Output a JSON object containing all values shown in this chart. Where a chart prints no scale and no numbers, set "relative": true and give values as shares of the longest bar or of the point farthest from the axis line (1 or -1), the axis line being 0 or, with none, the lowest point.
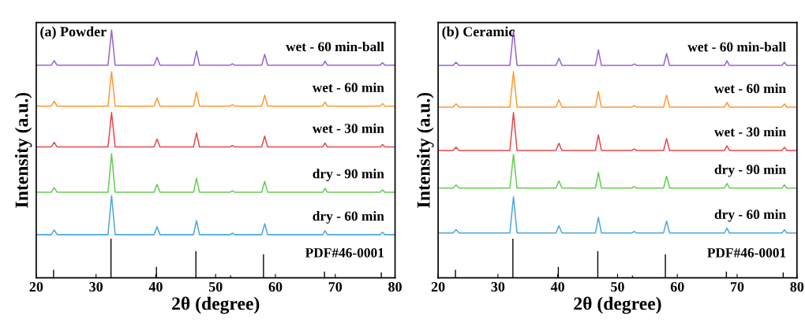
{
  "chart_data": [
    {
      "type": "line",
      "title": "(a) Powder",
      "xlabel": "2θ (degree)",
      "ylabel": "Intensity (a.u.)",
      "relative": true,
      "tick_labels": "x",
      "xlim": [
        20,
        80
      ],
      "xticks": [
        20,
        30,
        40,
        50,
        60,
        70,
        80
      ],
      "legend": false,
      "x": [
        20,
        22.5,
        23.0,
        23.5,
        32.0,
        32.6,
        33.2,
        39.7,
        40.2,
        40.7,
        46.3,
        46.8,
        47.3,
        52.4,
        52.8,
        53.2,
        57.7,
        58.2,
        58.7,
        67.9,
        68.3,
        68.7,
        77.5,
        77.9,
        78.3,
        80
      ],
      "series": [
        {
          "name": "wet - 60 min-ball",
          "color": "#9966cc",
          "values": [
            0.858,
            0.858,
            0.877,
            0.858,
            0.858,
            1.0,
            0.858,
            0.858,
            0.89,
            0.858,
            0.858,
            0.915,
            0.858,
            0.858,
            0.864,
            0.858,
            0.858,
            0.902,
            0.858,
            0.858,
            0.874,
            0.858,
            0.858,
            0.868,
            0.858,
            0.858
          ]
        },
        {
          "name": "wet - 60 min",
          "color": "#ff9933",
          "values": [
            0.693,
            0.693,
            0.712,
            0.693,
            0.693,
            0.832,
            0.693,
            0.693,
            0.725,
            0.693,
            0.693,
            0.75,
            0.693,
            0.693,
            0.699,
            0.693,
            0.693,
            0.737,
            0.693,
            0.693,
            0.709,
            0.693,
            0.693,
            0.703,
            0.693,
            0.693
          ]
        },
        {
          "name": "wet - 30 min",
          "color": "#e8474b",
          "values": [
            0.528,
            0.528,
            0.547,
            0.528,
            0.528,
            0.667,
            0.528,
            0.528,
            0.56,
            0.528,
            0.528,
            0.585,
            0.528,
            0.528,
            0.534,
            0.528,
            0.528,
            0.572,
            0.528,
            0.528,
            0.544,
            0.528,
            0.528,
            0.538,
            0.528,
            0.528
          ]
        },
        {
          "name": "dry - 90 min",
          "color": "#66cc55",
          "values": [
            0.345,
            0.345,
            0.364,
            0.345,
            0.345,
            0.5,
            0.345,
            0.345,
            0.377,
            0.345,
            0.345,
            0.402,
            0.345,
            0.345,
            0.351,
            0.345,
            0.345,
            0.389,
            0.345,
            0.345,
            0.361,
            0.345,
            0.345,
            0.355,
            0.345,
            0.345
          ]
        },
        {
          "name": "dry - 60 min",
          "color": "#4da6e0",
          "values": [
            0.174,
            0.174,
            0.193,
            0.174,
            0.174,
            0.332,
            0.174,
            0.174,
            0.206,
            0.174,
            0.174,
            0.231,
            0.174,
            0.174,
            0.18,
            0.174,
            0.174,
            0.218,
            0.174,
            0.174,
            0.19,
            0.174,
            0.174,
            0.184,
            0.174,
            0.174
          ]
        },
        {
          "name": "PDF#46-0001",
          "type": "bar",
          "color": "#000000",
          "x": [
            22.9,
            32.5,
            40.1,
            46.7,
            52.5,
            58.0,
            68.2,
            77.7
          ],
          "values": [
            0.032,
            0.158,
            0.044,
            0.108,
            0.009,
            0.095,
            0.025,
            0.022
          ]
        }
      ]
    },
    {
      "type": "line",
      "title": "(b) Ceramic",
      "xlabel": "2θ (degree)",
      "ylabel": "Intensity (a.u.)",
      "relative": true,
      "tick_labels": "x",
      "xlim": [
        20,
        80
      ],
      "xticks": [
        20,
        30,
        40,
        50,
        60,
        70,
        80
      ],
      "legend": false,
      "x": [
        20,
        22.5,
        23.0,
        23.5,
        32.0,
        32.6,
        33.2,
        39.7,
        40.2,
        40.7,
        46.3,
        46.8,
        47.3,
        52.4,
        52.8,
        53.2,
        57.7,
        58.2,
        58.7,
        67.9,
        68.3,
        68.7,
        77.5,
        77.9,
        78.3,
        80
      ],
      "series": [
        {
          "name": "wet - 60 min-ball",
          "color": "#9966cc",
          "values": [
            0.857,
            0.857,
            0.87,
            0.857,
            0.857,
            1.0,
            0.857,
            0.857,
            0.886,
            0.857,
            0.857,
            0.92,
            0.857,
            0.857,
            0.863,
            0.857,
            0.857,
            0.905,
            0.857,
            0.857,
            0.876,
            0.857,
            0.857,
            0.87,
            0.857,
            0.857
          ]
        },
        {
          "name": "wet - 60 min",
          "color": "#ff9933",
          "values": [
            0.689,
            0.689,
            0.702,
            0.689,
            0.689,
            0.832,
            0.689,
            0.689,
            0.718,
            0.689,
            0.689,
            0.752,
            0.689,
            0.689,
            0.695,
            0.689,
            0.689,
            0.737,
            0.689,
            0.689,
            0.708,
            0.689,
            0.689,
            0.702,
            0.689,
            0.689
          ]
        },
        {
          "name": "wet - 30 min",
          "color": "#e8474b",
          "values": [
            0.514,
            0.514,
            0.527,
            0.514,
            0.514,
            0.667,
            0.514,
            0.514,
            0.543,
            0.514,
            0.514,
            0.577,
            0.514,
            0.514,
            0.52,
            0.514,
            0.514,
            0.562,
            0.514,
            0.514,
            0.533,
            0.514,
            0.514,
            0.527,
            0.514,
            0.514
          ]
        },
        {
          "name": "dry - 90 min",
          "color": "#66cc55",
          "values": [
            0.362,
            0.362,
            0.375,
            0.362,
            0.362,
            0.498,
            0.362,
            0.362,
            0.391,
            0.362,
            0.362,
            0.425,
            0.362,
            0.362,
            0.368,
            0.362,
            0.362,
            0.41,
            0.362,
            0.362,
            0.381,
            0.362,
            0.362,
            0.375,
            0.362,
            0.362
          ]
        },
        {
          "name": "dry - 60 min",
          "color": "#4da6e0",
          "values": [
            0.181,
            0.181,
            0.194,
            0.181,
            0.181,
            0.327,
            0.181,
            0.181,
            0.21,
            0.181,
            0.181,
            0.244,
            0.181,
            0.181,
            0.187,
            0.181,
            0.181,
            0.229,
            0.181,
            0.181,
            0.2,
            0.181,
            0.181,
            0.194,
            0.181,
            0.181
          ]
        },
        {
          "name": "PDF#46-0001",
          "type": "bar",
          "color": "#000000",
          "x": [
            22.9,
            32.5,
            40.1,
            46.7,
            52.5,
            58.0,
            68.2,
            77.7
          ],
          "values": [
            0.032,
            0.158,
            0.044,
            0.108,
            0.009,
            0.095,
            0.025,
            0.022
          ]
        }
      ]
    }
  ]
}
